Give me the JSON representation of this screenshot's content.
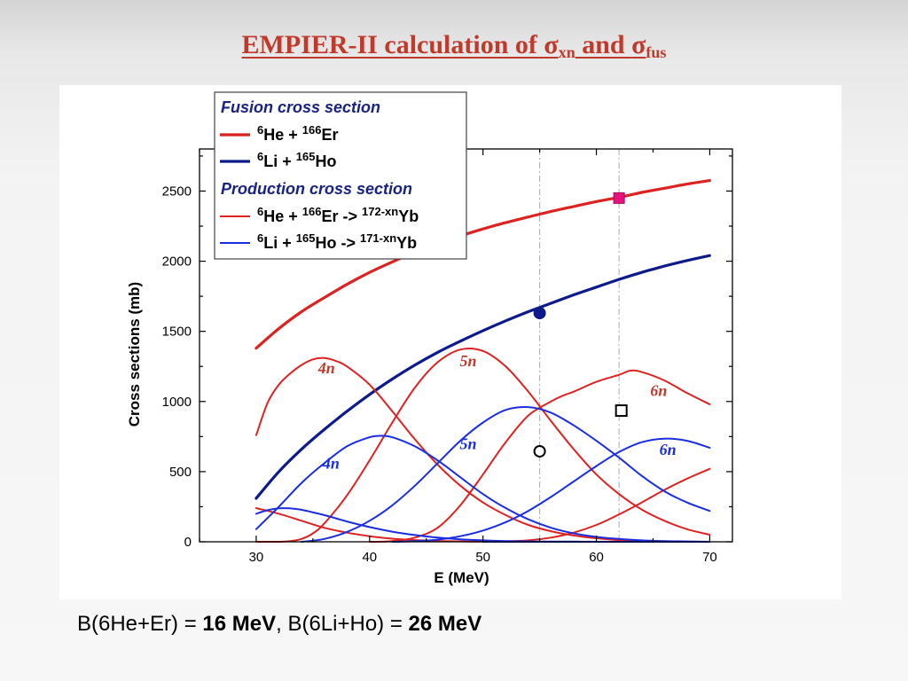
{
  "slide": {
    "title_main": "EMPIER-II calculation of ",
    "sigma": "σ",
    "sub_xn": "xn",
    "and": " and ",
    "sub_fus": "fus",
    "footnote_a": "B(6He+Er) = ",
    "footnote_a_val": "16 MeV",
    "footnote_sep": ",   ",
    "footnote_b": "B(6Li+Ho) = ",
    "footnote_b_val": "26 MeV"
  },
  "chart_data": {
    "type": "line",
    "xlabel": "E (MeV)",
    "ylabel": "Cross sections (mb)",
    "xlim": [
      25,
      72
    ],
    "ylim": [
      0,
      2800
    ],
    "xticks": [
      30,
      40,
      50,
      60,
      70
    ],
    "yticks": [
      0,
      500,
      1000,
      1500,
      2000,
      2500
    ],
    "grid": false,
    "legend_position": "top-left",
    "legend": {
      "heading_fusion": "Fusion cross section",
      "heading_production": "Production cross section",
      "entries": [
        {
          "series": "he_fus",
          "parts": [
            "6",
            "He + ",
            "166",
            "Er",
            "",
            ""
          ]
        },
        {
          "series": "li_fus",
          "parts": [
            "6",
            "Li   + ",
            "165",
            "Ho",
            "",
            ""
          ]
        },
        {
          "series": "he_xn",
          "parts": [
            "6",
            "He + ",
            "166",
            "Er -> ",
            "172-xn",
            "Yb"
          ]
        },
        {
          "series": "li_xn",
          "parts": [
            "6",
            "Li   + ",
            "165",
            "Ho -> ",
            "171-xn",
            "Yb"
          ]
        }
      ]
    },
    "colors": {
      "he_fus": "#dd2222",
      "li_fus": "#0d1a8c",
      "he_xn": "#dd2222",
      "li_xn": "#1a2ee0",
      "marker_pink": "#e8127e"
    },
    "vlines": [
      55,
      62
    ],
    "series": [
      {
        "id": "he_fus",
        "color": "#dd2222",
        "width": 3.2,
        "x": [
          30,
          32,
          34,
          36,
          38,
          40,
          42,
          44,
          46,
          48,
          50,
          52,
          54,
          56,
          58,
          60,
          62,
          64,
          66,
          68,
          70
        ],
        "y": [
          1380,
          1520,
          1640,
          1740,
          1835,
          1920,
          1995,
          2065,
          2125,
          2180,
          2230,
          2275,
          2315,
          2355,
          2390,
          2425,
          2455,
          2490,
          2520,
          2550,
          2575
        ]
      },
      {
        "id": "li_fus",
        "color": "#0d1a8c",
        "width": 3.2,
        "x": [
          30,
          32,
          34,
          36,
          38,
          40,
          42,
          44,
          46,
          48,
          50,
          52,
          54,
          56,
          58,
          60,
          62,
          64,
          66,
          68,
          70
        ],
        "y": [
          310,
          500,
          660,
          800,
          930,
          1050,
          1160,
          1260,
          1350,
          1430,
          1505,
          1575,
          1640,
          1700,
          1760,
          1815,
          1870,
          1920,
          1965,
          2005,
          2040
        ]
      },
      {
        "id": "he_2n",
        "color": "#dd2222",
        "width": 2,
        "x": [
          30,
          32,
          34,
          36,
          38,
          40,
          42,
          44,
          46,
          48,
          50,
          52,
          55,
          58,
          62,
          66,
          70
        ],
        "y": [
          240,
          200,
          150,
          100,
          65,
          40,
          22,
          12,
          6,
          3,
          1,
          0,
          0,
          0,
          0,
          0,
          0
        ]
      },
      {
        "id": "he_3n",
        "color": "#dd2222",
        "width": 2,
        "x": [
          30,
          31,
          32,
          33,
          34,
          35,
          36,
          37,
          38,
          40,
          42,
          44,
          46,
          48,
          50,
          52,
          54,
          56,
          58,
          60,
          62,
          65,
          70
        ],
        "y": [
          760,
          990,
          1120,
          1200,
          1260,
          1300,
          1310,
          1290,
          1250,
          1120,
          930,
          730,
          550,
          400,
          280,
          190,
          120,
          75,
          45,
          25,
          12,
          4,
          0
        ]
      },
      {
        "id": "he_4n",
        "color": "#dd2222",
        "width": 2,
        "x": [
          30,
          32,
          33,
          34,
          35,
          36,
          38,
          40,
          42,
          44,
          46,
          48,
          50,
          52,
          54,
          56,
          58,
          60,
          62,
          64,
          66,
          68,
          70
        ],
        "y": [
          0,
          0,
          5,
          20,
          60,
          130,
          330,
          580,
          850,
          1100,
          1280,
          1370,
          1360,
          1250,
          1070,
          860,
          660,
          480,
          340,
          230,
          150,
          90,
          50
        ]
      },
      {
        "id": "he_5n",
        "color": "#dd2222",
        "width": 2,
        "x": [
          40,
          42,
          44,
          46,
          48,
          50,
          52,
          54,
          56,
          57,
          58,
          60,
          62,
          63,
          64,
          66,
          68,
          70
        ],
        "y": [
          0,
          5,
          30,
          100,
          260,
          480,
          710,
          900,
          1000,
          1040,
          1070,
          1140,
          1190,
          1220,
          1210,
          1150,
          1060,
          980
        ]
      },
      {
        "id": "he_6n",
        "color": "#dd2222",
        "width": 2,
        "x": [
          50,
          52,
          54,
          56,
          58,
          60,
          62,
          64,
          66,
          68,
          70
        ],
        "y": [
          0,
          3,
          10,
          30,
          65,
          120,
          195,
          280,
          370,
          450,
          520
        ]
      },
      {
        "id": "li_2n",
        "color": "#1a2ee0",
        "width": 2,
        "x": [
          30,
          31,
          32,
          33,
          34,
          36,
          38,
          40,
          42,
          44,
          46,
          48,
          50,
          52,
          55,
          58,
          62,
          70
        ],
        "y": [
          200,
          225,
          238,
          238,
          228,
          190,
          145,
          105,
          72,
          48,
          30,
          18,
          10,
          5,
          2,
          1,
          0,
          0
        ]
      },
      {
        "id": "li_3n",
        "color": "#1a2ee0",
        "width": 2,
        "x": [
          30,
          32,
          34,
          36,
          38,
          40,
          41,
          42,
          44,
          46,
          48,
          50,
          52,
          54,
          56,
          58,
          60,
          62,
          64,
          66,
          70
        ],
        "y": [
          90,
          250,
          420,
          560,
          680,
          745,
          755,
          745,
          680,
          580,
          460,
          340,
          240,
          160,
          100,
          60,
          35,
          20,
          10,
          5,
          0
        ]
      },
      {
        "id": "li_4n",
        "color": "#1a2ee0",
        "width": 2,
        "x": [
          34,
          36,
          38,
          40,
          42,
          44,
          46,
          48,
          50,
          52,
          54,
          56,
          58,
          60,
          62,
          64,
          66,
          68,
          70
        ],
        "y": [
          0,
          20,
          70,
          150,
          260,
          400,
          560,
          720,
          850,
          940,
          960,
          920,
          830,
          720,
          600,
          470,
          360,
          280,
          220
        ]
      },
      {
        "id": "li_5n",
        "color": "#1a2ee0",
        "width": 2,
        "x": [
          42,
          44,
          46,
          48,
          50,
          52,
          54,
          56,
          58,
          60,
          62,
          64,
          66,
          68,
          70
        ],
        "y": [
          0,
          5,
          15,
          40,
          80,
          140,
          220,
          320,
          430,
          540,
          640,
          710,
          735,
          720,
          670
        ]
      },
      {
        "id": "li_6n",
        "color": "#1a2ee0",
        "width": 2,
        "x": [
          50,
          54,
          58,
          60,
          62,
          64,
          66,
          68,
          70
        ],
        "y": [
          0,
          0,
          0,
          0,
          0,
          0,
          0,
          0,
          0
        ]
      }
    ],
    "markers": [
      {
        "name": "he-fusion-data-point",
        "shape": "square",
        "filled": true,
        "color": "#e8127e",
        "x": 62,
        "y": 2450
      },
      {
        "name": "li-fusion-data-point",
        "shape": "circle",
        "filled": true,
        "color": "#0d1a8c",
        "x": 55,
        "y": 1630
      },
      {
        "name": "he-6n-data-point",
        "shape": "square",
        "filled": false,
        "color": "#000000",
        "x": 62.2,
        "y": 935
      },
      {
        "name": "li-5n-data-point",
        "shape": "circle",
        "filled": false,
        "color": "#000000",
        "x": 55,
        "y": 645
      }
    ],
    "annotations": [
      {
        "text": "4n",
        "x": 36.2,
        "y": 1200,
        "color": "#c0392b"
      },
      {
        "text": "5n",
        "x": 48.7,
        "y": 1250,
        "color": "#c0392b"
      },
      {
        "text": "6n",
        "x": 65.5,
        "y": 1040,
        "color": "#c0392b"
      },
      {
        "text": "4n",
        "x": 36.6,
        "y": 520,
        "color": "#1a2ee0"
      },
      {
        "text": "5n",
        "x": 48.7,
        "y": 660,
        "color": "#1a2ee0"
      },
      {
        "text": "6n",
        "x": 66.3,
        "y": 620,
        "color": "#1a2ee0"
      }
    ]
  }
}
